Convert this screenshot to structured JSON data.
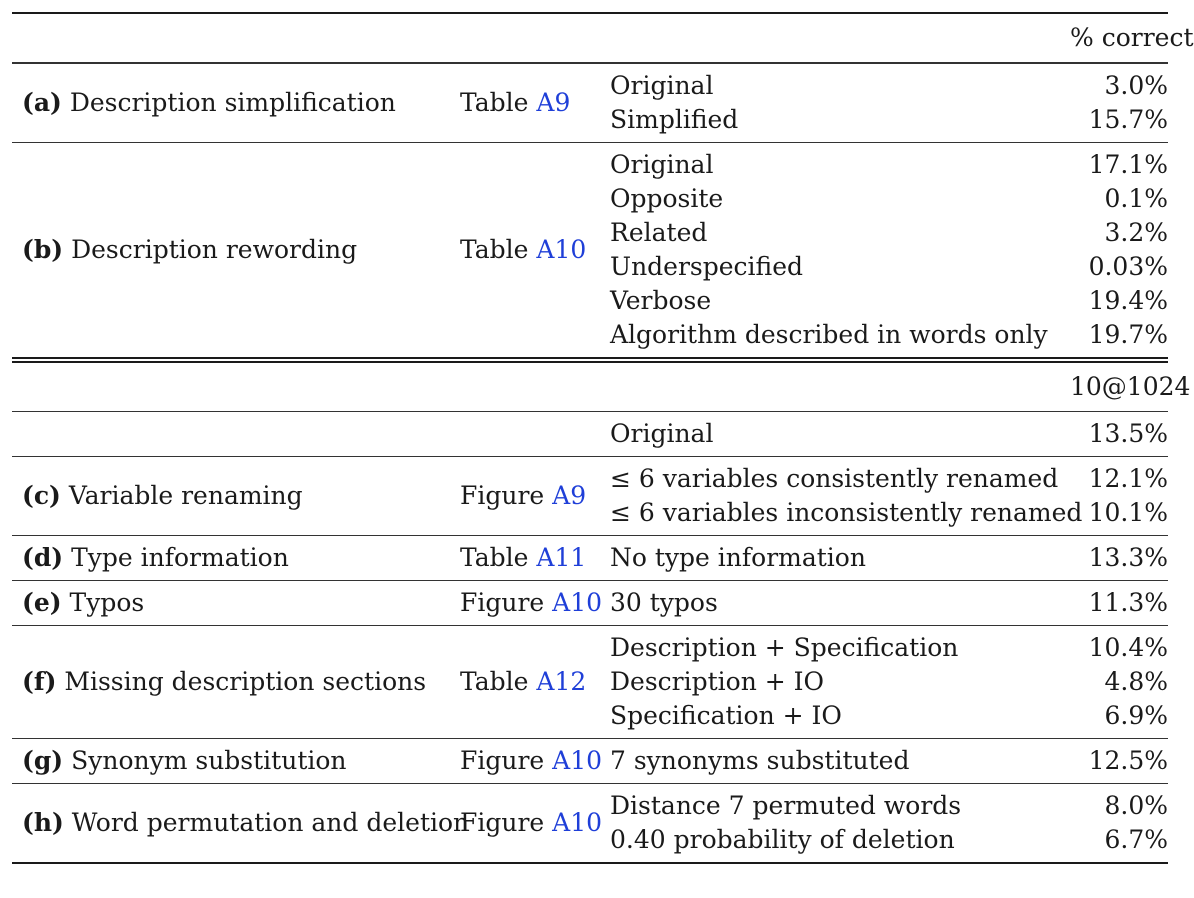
{
  "header_top": {
    "metric": "% correct"
  },
  "header_bottom": {
    "metric": "10@1024"
  },
  "baseline_row": {
    "variant": "Original",
    "value": "13.5%"
  },
  "sections_top": [
    {
      "tag": "(a)",
      "name": "Description simplification",
      "ref_prefix": "Table",
      "ref_id": "A9",
      "variants": [
        "Original",
        "Simplified"
      ],
      "values": [
        "3.0%",
        "15.7%"
      ]
    },
    {
      "tag": "(b)",
      "name": "Description rewording",
      "ref_prefix": "Table",
      "ref_id": "A10",
      "variants": [
        "Original",
        "Opposite",
        "Related",
        "Underspecified",
        "Verbose",
        "Algorithm described in words only"
      ],
      "values": [
        "17.1%",
        "0.1%",
        "3.2%",
        "0.03%",
        "19.4%",
        "19.7%"
      ]
    }
  ],
  "sections_bottom": [
    {
      "tag": "(c)",
      "name": "Variable renaming",
      "ref_prefix": "Figure",
      "ref_id": "A9",
      "variants": [
        "≤ 6 variables consistently renamed",
        "≤ 6 variables inconsistently renamed"
      ],
      "values": [
        "12.1%",
        "10.1%"
      ]
    },
    {
      "tag": "(d)",
      "name": "Type information",
      "ref_prefix": "Table",
      "ref_id": "A11",
      "variants": [
        "No type information"
      ],
      "values": [
        "13.3%"
      ]
    },
    {
      "tag": "(e)",
      "name": "Typos",
      "ref_prefix": "Figure",
      "ref_id": "A10",
      "variants": [
        "30 typos"
      ],
      "values": [
        "11.3%"
      ]
    },
    {
      "tag": "(f)",
      "name": "Missing description sections",
      "ref_prefix": "Table",
      "ref_id": "A12",
      "variants": [
        "Description + Specification",
        "Description + IO",
        "Specification + IO"
      ],
      "values": [
        "10.4%",
        "4.8%",
        "6.9%"
      ]
    },
    {
      "tag": "(g)",
      "name": "Synonym substitution",
      "ref_prefix": "Figure",
      "ref_id": "A10",
      "variants": [
        "7 synonyms substituted"
      ],
      "values": [
        "12.5%"
      ]
    },
    {
      "tag": "(h)",
      "name": "Word permutation and deletion",
      "ref_prefix": "Figure",
      "ref_id": "A10",
      "variants": [
        "Distance 7 permuted words",
        "0.40 probability of deletion"
      ],
      "values": [
        "8.0%",
        "6.7%"
      ]
    }
  ]
}
